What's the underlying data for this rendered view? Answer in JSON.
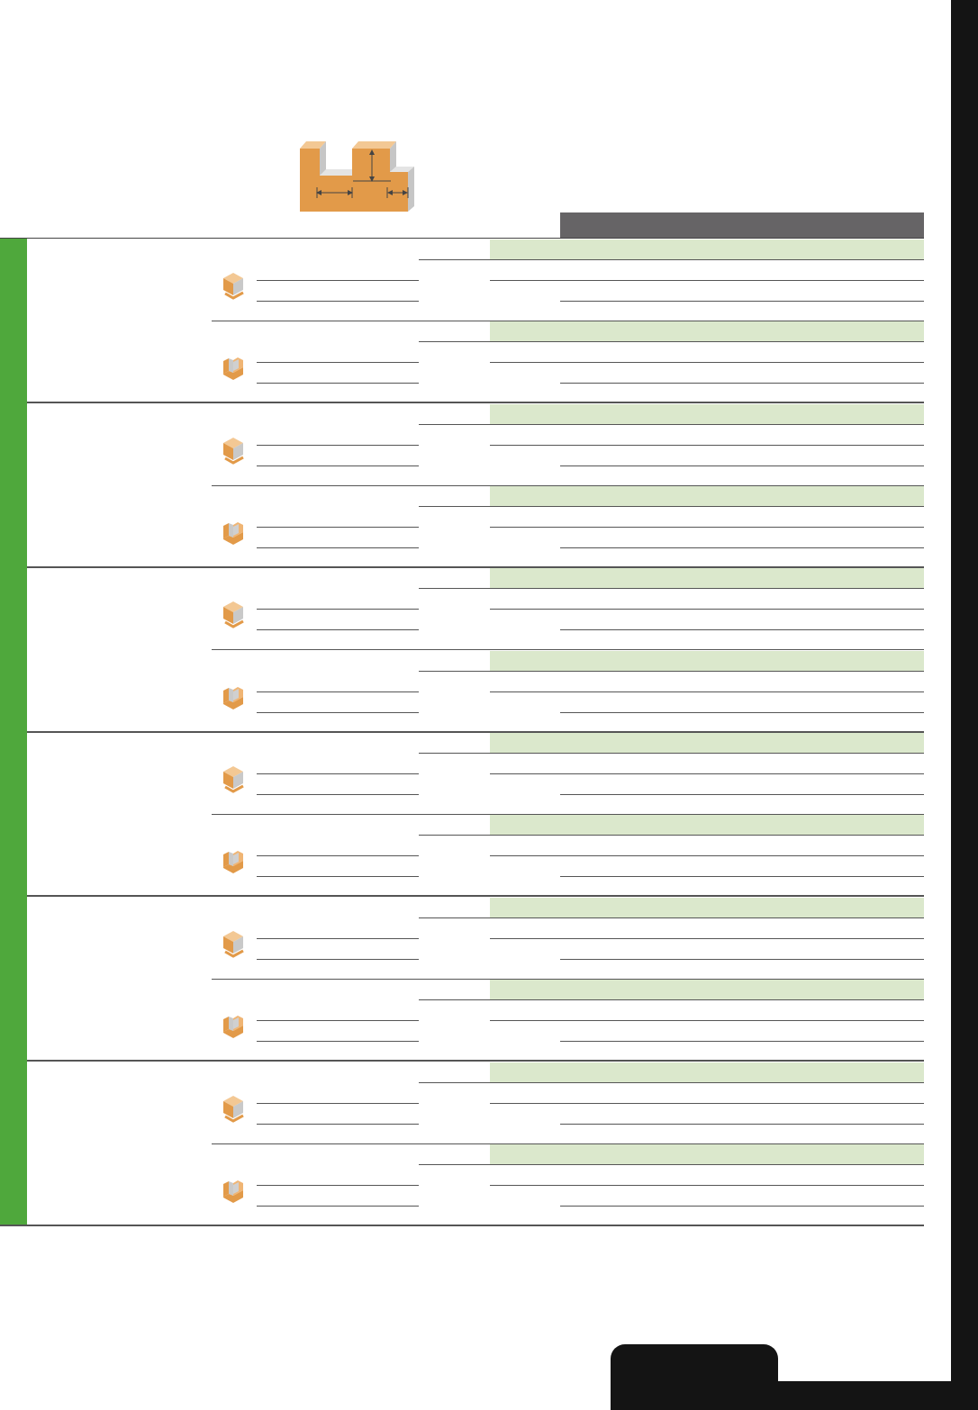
{
  "page": {
    "tab_label": "",
    "colors": {
      "accent_green": "#4fa83c",
      "band_green": "#dbe8cc",
      "header_gray": "#666466",
      "orange": "#e29a49",
      "frame_dark": "#141414"
    }
  },
  "table": {
    "header_label": "",
    "groups": [
      {
        "label": ""
      },
      {
        "label": ""
      },
      {
        "label": ""
      },
      {
        "label": ""
      },
      {
        "label": ""
      },
      {
        "label": ""
      }
    ]
  },
  "icons": {
    "diagram": "slot-cutter-profile-icon",
    "row_a": "solid-block-icon",
    "row_b": "slotted-block-icon"
  }
}
